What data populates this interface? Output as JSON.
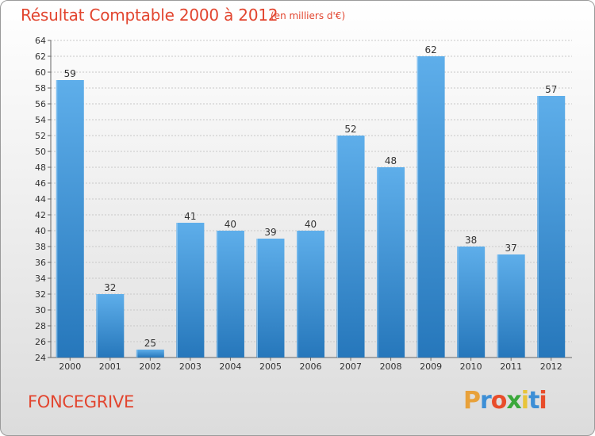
{
  "chart_data": {
    "type": "bar",
    "title": "Résultat Comptable 2000 à 2012",
    "unit_label": "(en milliers d'€)",
    "categories": [
      "2000",
      "2001",
      "2002",
      "2003",
      "2004",
      "2005",
      "2006",
      "2007",
      "2008",
      "2009",
      "2010",
      "2011",
      "2012"
    ],
    "values": [
      59,
      32,
      25,
      41,
      40,
      39,
      40,
      52,
      48,
      62,
      38,
      37,
      57
    ],
    "ylim": [
      24,
      64
    ],
    "y_ticks": [
      24,
      26,
      28,
      30,
      32,
      34,
      36,
      38,
      40,
      42,
      44,
      46,
      48,
      50,
      52,
      54,
      56,
      58,
      60,
      62,
      64
    ],
    "grid": true,
    "xlabel": "",
    "ylabel": ""
  },
  "location": "FONCEGRIVE",
  "brand": {
    "letters": [
      "P",
      "r",
      "o",
      "x",
      "i",
      "t",
      "i"
    ],
    "colors": [
      "#e8a13a",
      "#3d8fd6",
      "#e84d2b",
      "#3aa83a",
      "#e8c43a",
      "#3d8fd6",
      "#e84d2b"
    ]
  },
  "colors": {
    "title": "#e2452f",
    "bar_light": "#5aaae6",
    "bar_dark": "#2a7ec2"
  }
}
